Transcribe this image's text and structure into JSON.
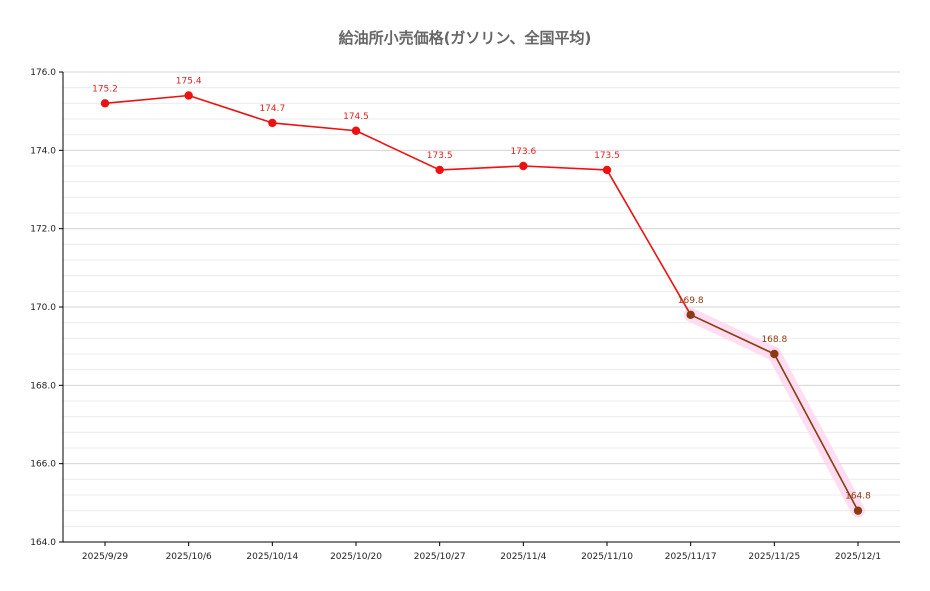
{
  "chart_data": {
    "type": "line",
    "title": "給油所小売価格(ガソリン、全国平均)",
    "xlabel": "",
    "ylabel": "",
    "categories": [
      "2025/9/29",
      "2025/10/6",
      "2025/10/14",
      "2025/10/20",
      "2025/10/27",
      "2025/11/4",
      "2025/11/10",
      "2025/11/17",
      "2025/11/25",
      "2025/12/1"
    ],
    "values": [
      175.2,
      175.4,
      174.7,
      174.5,
      173.5,
      173.6,
      173.5,
      169.8,
      168.8,
      164.8
    ],
    "value_labels": [
      "175.2",
      "175.4",
      "174.7",
      "174.5",
      "173.5",
      "173.6",
      "173.5",
      "169.8",
      "168.8",
      "164.8"
    ],
    "ylim": [
      164.0,
      176.0
    ],
    "yticks": [
      164.0,
      166.0,
      168.0,
      170.0,
      172.0,
      174.0,
      176.0
    ],
    "ytick_labels": [
      "164.0",
      "166.0",
      "168.0",
      "170.0",
      "172.0",
      "174.0",
      "176.0"
    ],
    "minor_step": 0.4,
    "grid": true,
    "legend": "none",
    "highlight_from_index": 7,
    "colors": {
      "line": "#ee1111",
      "highlight": "#8b3a12",
      "label": "#dd2222",
      "highlight_label": "#8b3a12",
      "band": "#ffd6f0",
      "grid_major": "#d6d6d6",
      "grid_minor": "#ececec",
      "axis": "#000000"
    }
  }
}
